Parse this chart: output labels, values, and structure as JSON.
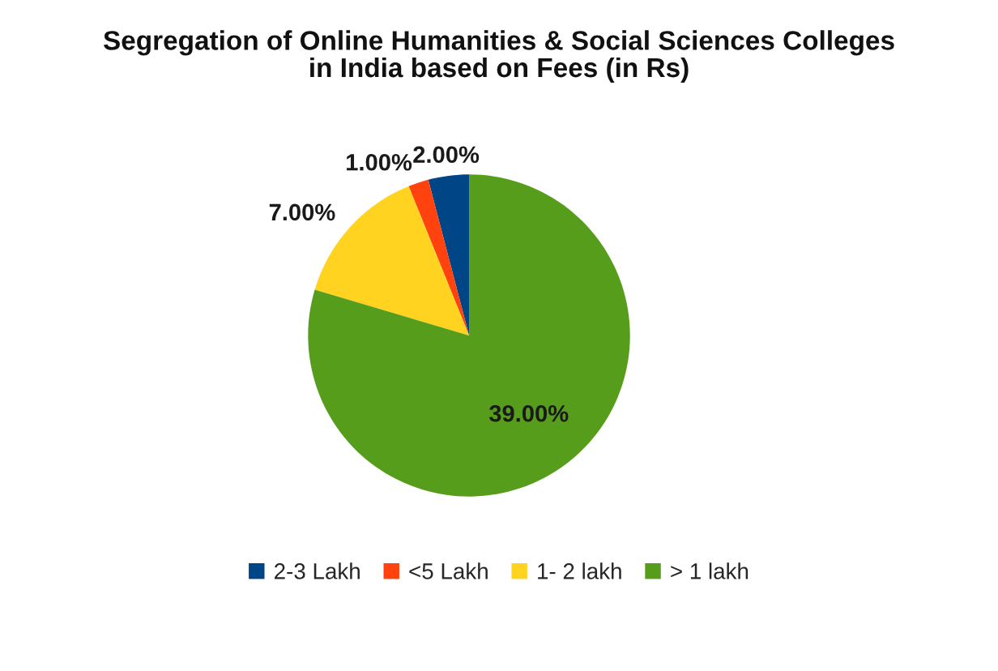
{
  "chart_data": {
    "type": "pie",
    "title": "Segregation of Online Humanities & Social Sciences Colleges\nin India based on Fees (in Rs)",
    "categories": [
      "2-3 Lakh",
      "<5 Lakh",
      "1- 2 lakh",
      "> 1 lakh"
    ],
    "values": [
      2,
      1,
      7,
      39
    ],
    "value_labels": [
      "2.00%",
      "1.00%",
      "7.00%",
      "39.00%"
    ],
    "colors": [
      "#004586",
      "#ff420e",
      "#ffd320",
      "#579d1c"
    ],
    "legend": "bottom"
  }
}
